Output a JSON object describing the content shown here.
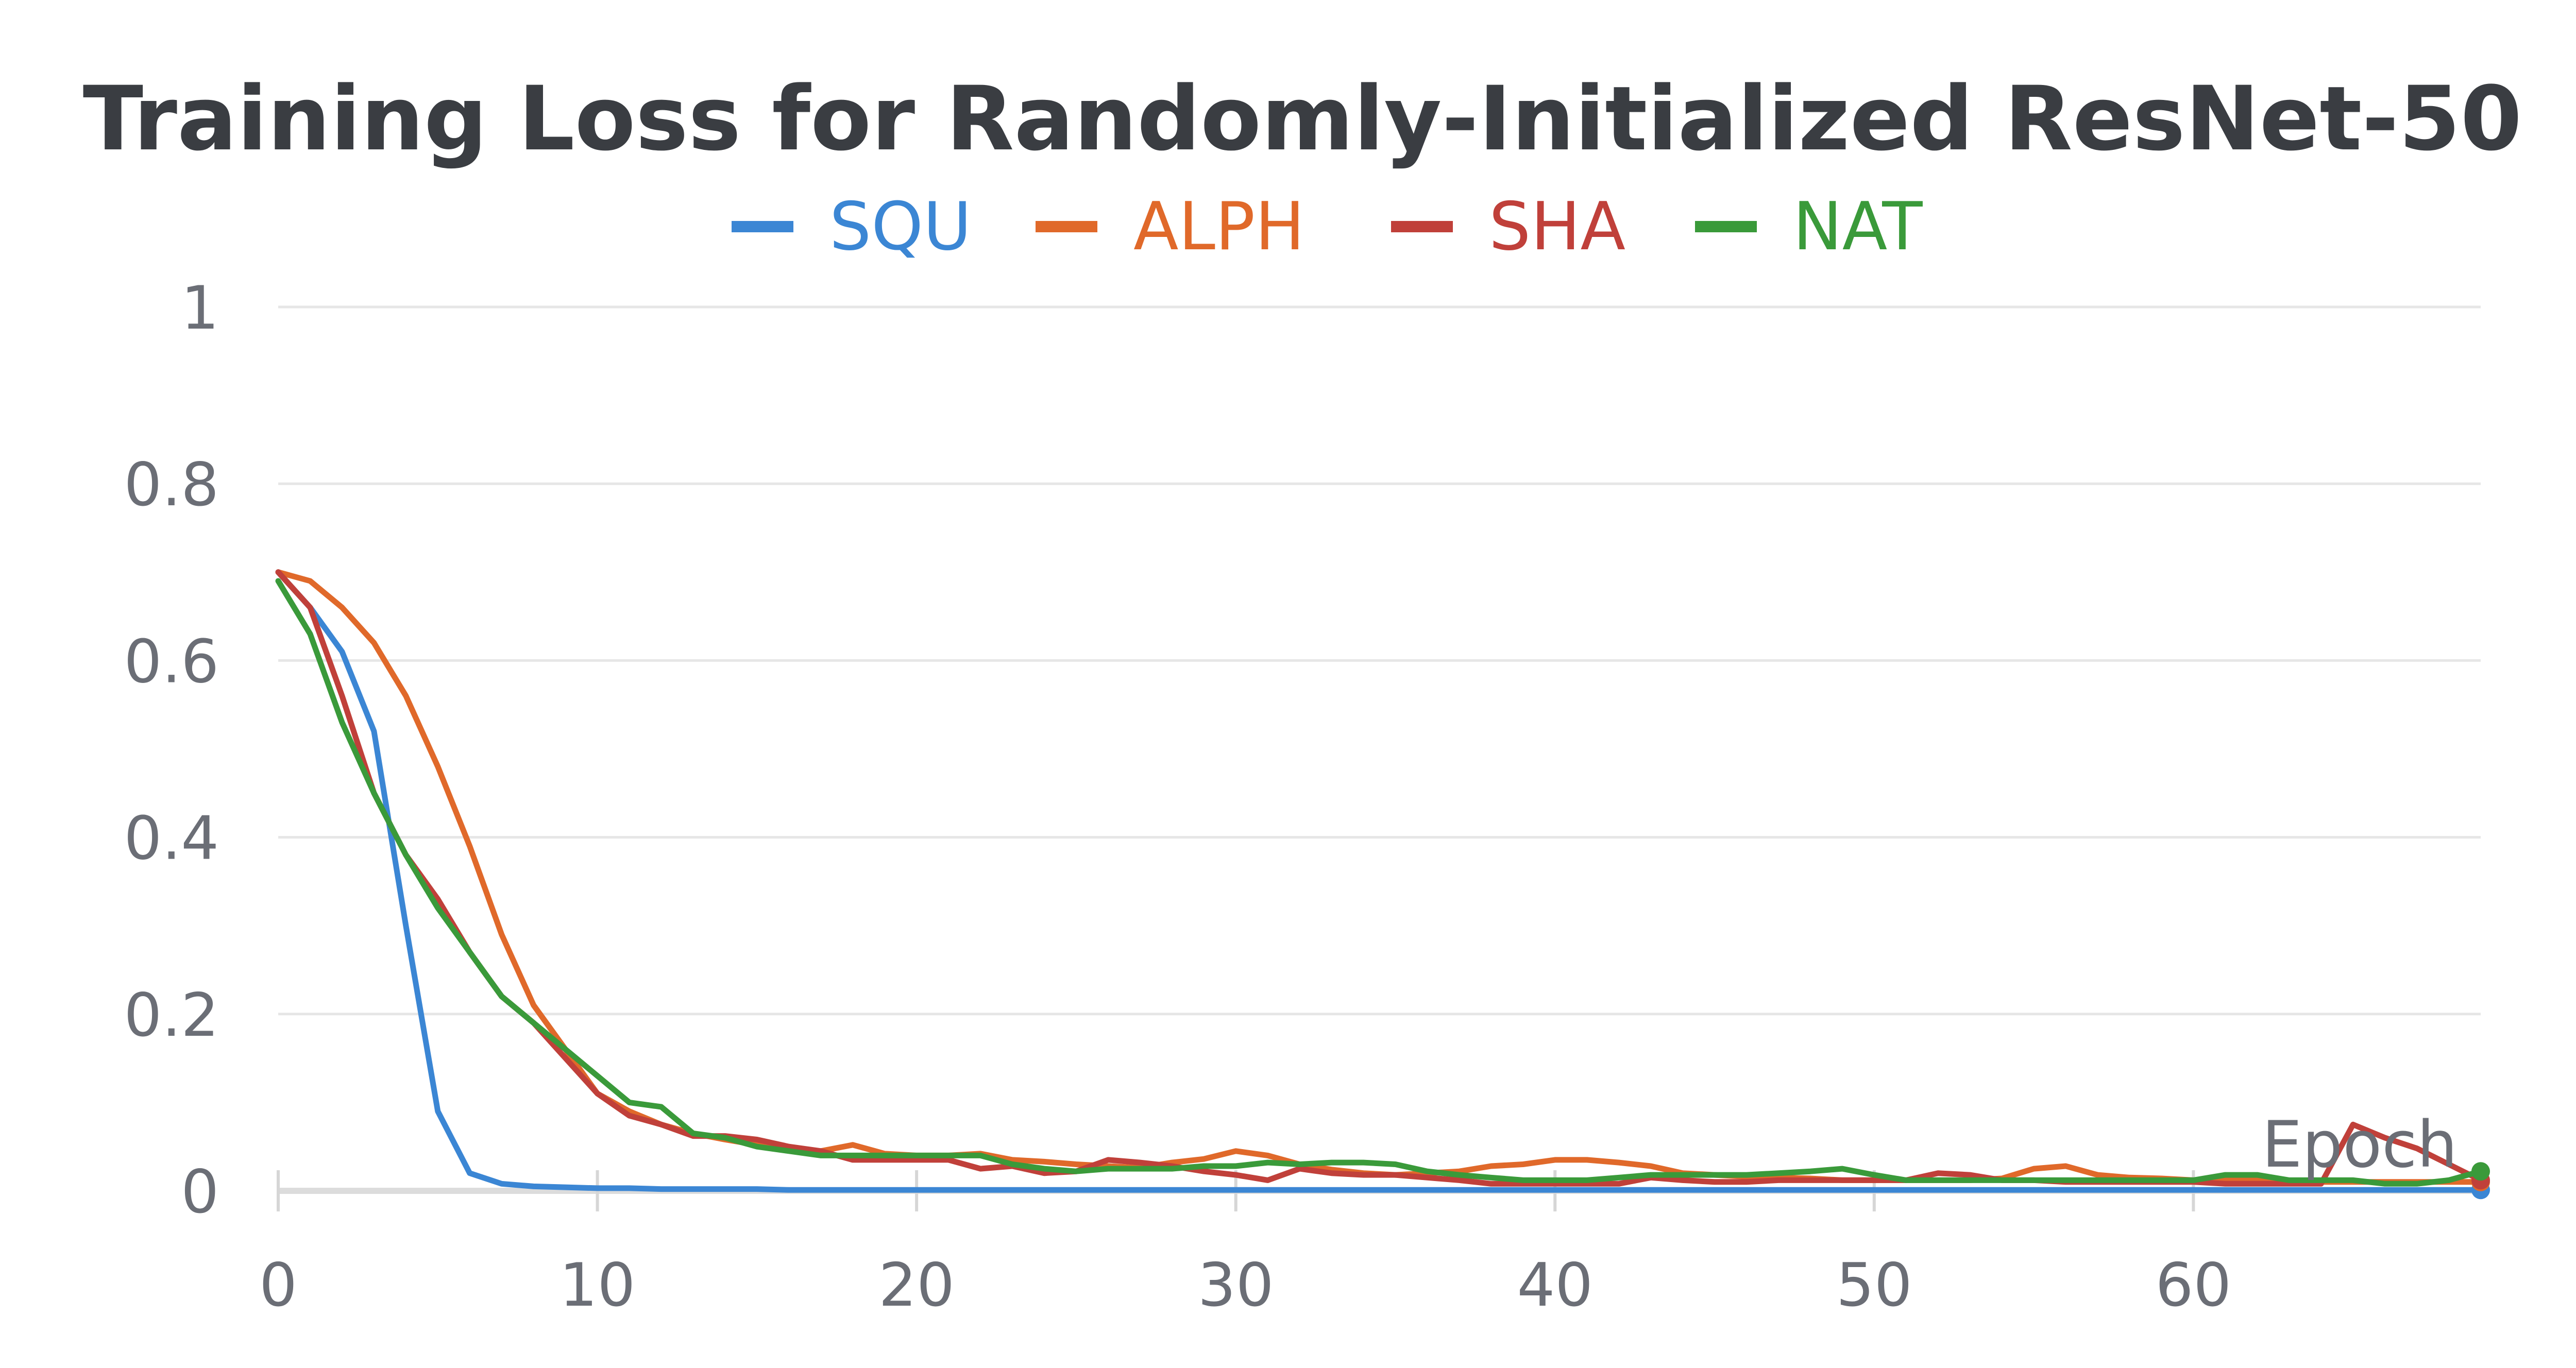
{
  "chart_data": {
    "type": "line",
    "title": "Training Loss for Randomly-Initialized ResNet-50",
    "xlabel": "Epoch",
    "ylabel": "",
    "xlim": [
      0,
      69
    ],
    "ylim": [
      0,
      1
    ],
    "grid": true,
    "legend_position": "top-center",
    "x_ticks": [
      0,
      10,
      20,
      30,
      40,
      50,
      60
    ],
    "x_tick_labels": [
      "0",
      "10",
      "20",
      "30",
      "40",
      "50",
      "60"
    ],
    "y_ticks": [
      0,
      0.2,
      0.4,
      0.6,
      0.8,
      1
    ],
    "y_tick_labels": [
      "0",
      "0.2",
      "0.4",
      "0.6",
      "0.8",
      "1"
    ],
    "series": [
      {
        "name": "SQU",
        "color": "#3b86d4",
        "values": [
          0.7,
          0.66,
          0.61,
          0.52,
          0.3,
          0.09,
          0.02,
          0.008,
          0.005,
          0.004,
          0.003,
          0.003,
          0.002,
          0.002,
          0.002,
          0.002,
          0.001,
          0.001,
          0.001,
          0.001,
          0.001,
          0.001,
          0.001,
          0.001,
          0.001,
          0.001,
          0.001,
          0.001,
          0.001,
          0.001,
          0.001,
          0.001,
          0.001,
          0.001,
          0.001,
          0.001,
          0.001,
          0.001,
          0.001,
          0.001,
          0.001,
          0.001,
          0.001,
          0.001,
          0.001,
          0.001,
          0.001,
          0.001,
          0.001,
          0.001,
          0.001,
          0.001,
          0.001,
          0.001,
          0.001,
          0.001,
          0.001,
          0.001,
          0.001,
          0.001,
          0.001,
          0.001,
          0.001,
          0.001,
          0.001,
          0.001,
          0.001,
          0.001,
          0.001,
          0.001
        ]
      },
      {
        "name": "ALPH",
        "color": "#e0692a",
        "values": [
          0.7,
          0.69,
          0.66,
          0.62,
          0.56,
          0.48,
          0.39,
          0.29,
          0.21,
          0.16,
          0.11,
          0.09,
          0.075,
          0.065,
          0.058,
          0.052,
          0.048,
          0.045,
          0.052,
          0.042,
          0.04,
          0.04,
          0.042,
          0.035,
          0.033,
          0.03,
          0.028,
          0.026,
          0.032,
          0.036,
          0.045,
          0.04,
          0.03,
          0.024,
          0.02,
          0.018,
          0.02,
          0.022,
          0.028,
          0.03,
          0.035,
          0.035,
          0.032,
          0.028,
          0.02,
          0.018,
          0.016,
          0.015,
          0.014,
          0.012,
          0.012,
          0.012,
          0.012,
          0.012,
          0.014,
          0.025,
          0.028,
          0.018,
          0.015,
          0.014,
          0.012,
          0.012,
          0.012,
          0.01,
          0.01,
          0.01,
          0.01,
          0.01,
          0.01,
          0.01
        ]
      },
      {
        "name": "SHA",
        "color": "#c0403a",
        "values": [
          0.7,
          0.66,
          0.56,
          0.45,
          0.38,
          0.33,
          0.27,
          0.22,
          0.19,
          0.15,
          0.11,
          0.085,
          0.075,
          0.062,
          0.062,
          0.058,
          0.05,
          0.045,
          0.035,
          0.035,
          0.035,
          0.035,
          0.025,
          0.028,
          0.02,
          0.022,
          0.035,
          0.032,
          0.028,
          0.022,
          0.018,
          0.012,
          0.025,
          0.02,
          0.018,
          0.018,
          0.015,
          0.012,
          0.008,
          0.008,
          0.008,
          0.008,
          0.008,
          0.015,
          0.012,
          0.01,
          0.01,
          0.012,
          0.012,
          0.012,
          0.012,
          0.012,
          0.02,
          0.018,
          0.012,
          0.012,
          0.01,
          0.01,
          0.01,
          0.01,
          0.01,
          0.008,
          0.008,
          0.008,
          0.008,
          0.075,
          0.06,
          0.048,
          0.03,
          0.012
        ]
      },
      {
        "name": "NAT",
        "color": "#3a9a3a",
        "values": [
          0.69,
          0.63,
          0.53,
          0.45,
          0.38,
          0.32,
          0.27,
          0.22,
          0.19,
          0.16,
          0.13,
          0.1,
          0.095,
          0.065,
          0.06,
          0.05,
          0.045,
          0.04,
          0.04,
          0.04,
          0.04,
          0.04,
          0.04,
          0.03,
          0.025,
          0.022,
          0.025,
          0.025,
          0.025,
          0.028,
          0.028,
          0.032,
          0.03,
          0.032,
          0.032,
          0.03,
          0.022,
          0.018,
          0.015,
          0.012,
          0.012,
          0.012,
          0.015,
          0.018,
          0.018,
          0.018,
          0.018,
          0.02,
          0.022,
          0.025,
          0.018,
          0.012,
          0.012,
          0.012,
          0.012,
          0.012,
          0.012,
          0.012,
          0.012,
          0.012,
          0.012,
          0.018,
          0.018,
          0.012,
          0.012,
          0.012,
          0.008,
          0.008,
          0.012,
          0.022
        ]
      }
    ]
  }
}
